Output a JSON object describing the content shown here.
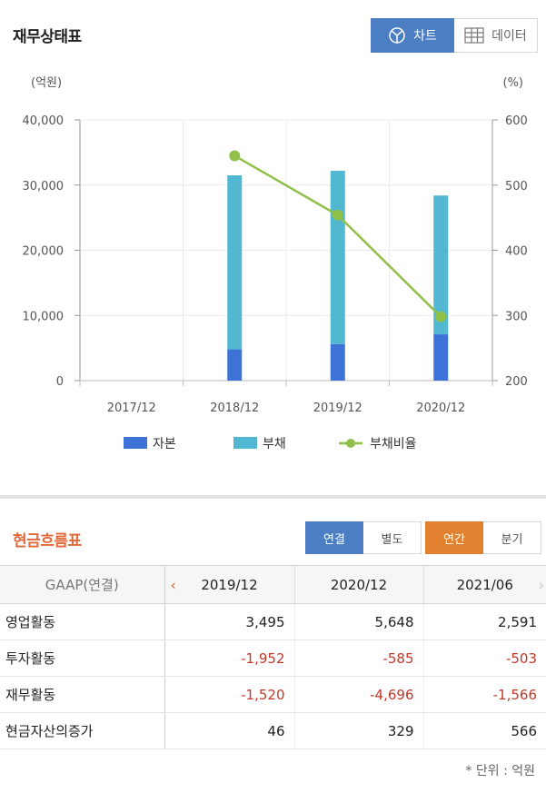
{
  "balance": {
    "title": "재무상태표",
    "tabs": {
      "chart_label": "차트",
      "data_label": "데이터"
    }
  },
  "chart_data": {
    "type": "bar",
    "stacked": true,
    "title": "",
    "categories": [
      "2017/12",
      "2018/12",
      "2019/12",
      "2020/12"
    ],
    "left_unit": "(억원)",
    "right_unit": "(%)",
    "ylim": [
      0,
      40000
    ],
    "y_ticks": [
      0,
      10000,
      20000,
      30000,
      40000
    ],
    "y_tick_labels": [
      "0",
      "10,000",
      "20,000",
      "30,000",
      "40,000"
    ],
    "y2lim": [
      200,
      600
    ],
    "y2_ticks": [
      200,
      300,
      400,
      500,
      600
    ],
    "y2_tick_labels": [
      "200",
      "300",
      "400",
      "500",
      "600"
    ],
    "grid": true,
    "legend_position": "bottom",
    "series": [
      {
        "name": "자본",
        "kind": "bar",
        "color": "#3f72d6",
        "values": [
          null,
          4800,
          5600,
          7100
        ]
      },
      {
        "name": "부채",
        "kind": "bar",
        "color": "#52b8d2",
        "values": [
          null,
          26700,
          26600,
          21300
        ]
      },
      {
        "name": "부채비율",
        "kind": "line",
        "axis": "right",
        "color": "#8fc04a",
        "values": [
          null,
          545,
          454,
          298
        ]
      }
    ]
  },
  "cashflow": {
    "title": "현금흐름표",
    "toggle1": [
      "연결",
      "별도"
    ],
    "toggle2": [
      "연간",
      "분기"
    ],
    "header_label": "GAAP(연결)",
    "periods": [
      "2019/12",
      "2020/12",
      "2021/06"
    ],
    "rows": [
      {
        "label": "영업활동",
        "values": [
          "3,495",
          "5,648",
          "2,591"
        ]
      },
      {
        "label": "투자활동",
        "values": [
          "-1,952",
          "-585",
          "-503"
        ]
      },
      {
        "label": "재무활동",
        "values": [
          "-1,520",
          "-4,696",
          "-1,566"
        ]
      },
      {
        "label": "현금자산의증가",
        "values": [
          "46",
          "329",
          "566"
        ]
      }
    ],
    "unit_note": "* 단위 : 억원"
  }
}
